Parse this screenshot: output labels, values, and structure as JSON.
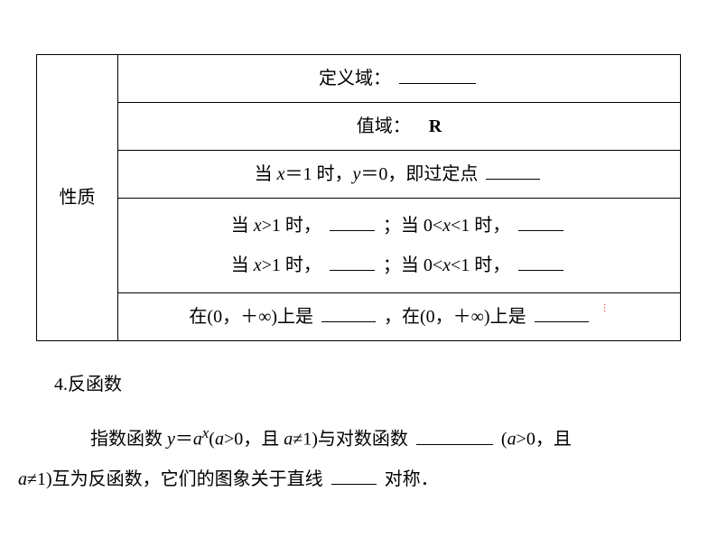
{
  "table": {
    "rowLabel": "性质",
    "row1": {
      "prefix": "定义域："
    },
    "row2": {
      "prefix": "值域：",
      "value": "R"
    },
    "row3": {
      "t1": "当 ",
      "t2": "＝1 时，",
      "t3": "＝0，即过定点"
    },
    "row4": {
      "l1a": "当 ",
      "l1b": ">1 时，",
      "l1c": "；当 0<",
      "l1d": "<1 时，",
      "l2a": "当 ",
      "l2b": ">1 时，",
      "l2c": "；当 0<",
      "l2d": "<1 时，"
    },
    "row5": {
      "t1": "在(0，＋∞)上是",
      "t2": "，在(0，＋∞)上是"
    }
  },
  "section": {
    "heading": "4.反函数",
    "p1a": "指数函数 ",
    "p1y": "y",
    "p1eq": "＝",
    "p1a2": "a",
    "p1b": "(",
    "p1c": ">0，且 ",
    "p1d": "≠1)与对数函数",
    "p1e": "(",
    "p1f": ">0，且",
    "p2a": "≠1)互为反函数，它们的图象关于直线",
    "p2b": "对称．"
  },
  "vars": {
    "x": "x",
    "y": "y",
    "a": "a"
  },
  "sup": {
    "x": "x"
  }
}
